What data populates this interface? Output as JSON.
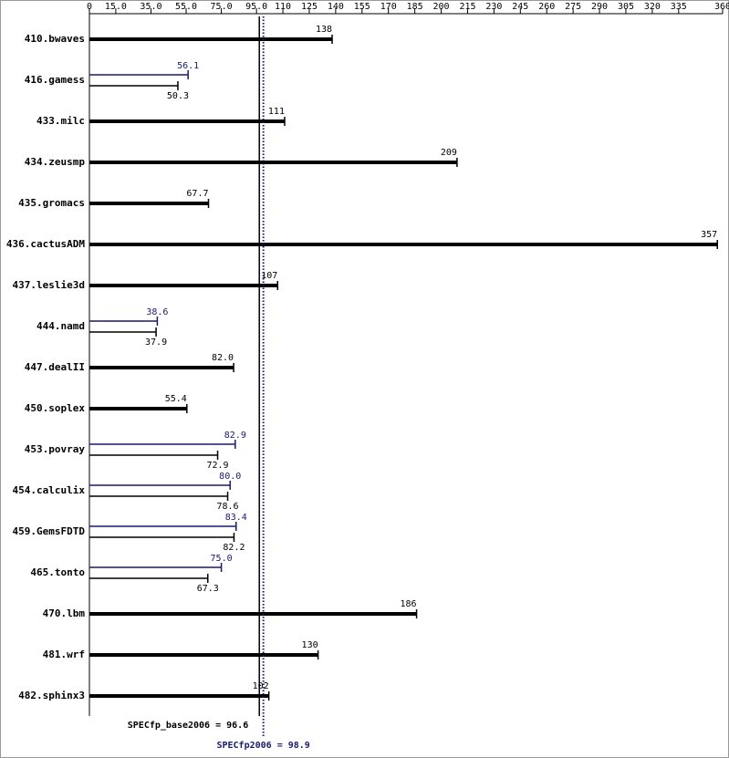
{
  "chart_data": {
    "type": "bar",
    "orientation": "horizontal",
    "categories": [
      "410.bwaves",
      "416.gamess",
      "433.milc",
      "434.zeusmp",
      "435.gromacs",
      "436.cactusADM",
      "437.leslie3d",
      "444.namd",
      "447.dealII",
      "450.soplex",
      "453.povray",
      "454.calculix",
      "459.GemsFDTD",
      "465.tonto",
      "470.lbm",
      "481.wrf",
      "482.sphinx3"
    ],
    "series": [
      {
        "color": "#000000",
        "values": [
          138,
          50.3,
          111,
          209,
          67.7,
          357,
          107,
          37.9,
          82.0,
          55.4,
          72.9,
          78.6,
          82.2,
          67.3,
          186,
          130,
          102
        ],
        "value_labels": [
          "138",
          "50.3",
          "111",
          "209",
          "67.7",
          "357",
          "107",
          "37.9",
          "82.0",
          "55.4",
          "72.9",
          "78.6",
          "82.2",
          "67.3",
          "186",
          "130",
          "102"
        ]
      },
      {
        "color": "#191970",
        "values": [
          null,
          56.1,
          null,
          null,
          null,
          null,
          null,
          38.6,
          null,
          null,
          82.9,
          80.0,
          83.4,
          75.0,
          null,
          null,
          null
        ],
        "value_labels": [
          null,
          "56.1",
          null,
          null,
          null,
          null,
          null,
          "38.6",
          null,
          null,
          "82.9",
          "80.0",
          "83.4",
          "75.0",
          null,
          null,
          null
        ]
      }
    ],
    "xlim": [
      0,
      360
    ],
    "xticks": [
      0,
      {
        "value": 15,
        "label": "15.0"
      },
      {
        "value": 35,
        "label": "35.0"
      },
      {
        "value": 55,
        "label": "55.0"
      },
      {
        "value": 75,
        "label": "75.0"
      },
      {
        "value": 95,
        "label": "95.0"
      },
      110,
      125,
      140,
      155,
      170,
      185,
      200,
      215,
      230,
      245,
      260,
      275,
      290,
      305,
      320,
      335,
      360
    ],
    "reference_lines": [
      {
        "value": 96.6,
        "label": "SPECfp_base2006 = 96.6",
        "color": "#000000",
        "style": "solid"
      },
      {
        "value": 98.9,
        "label": "SPECfp2006 = 98.9",
        "color": "#191970",
        "style": "dotted"
      }
    ]
  }
}
